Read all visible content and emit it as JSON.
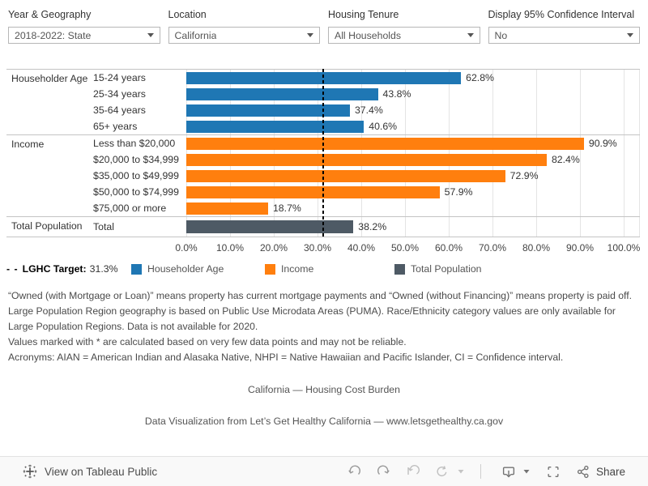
{
  "filters": [
    {
      "label": "Year & Geography",
      "value": "2018-2022: State"
    },
    {
      "label": "Location",
      "value": "California"
    },
    {
      "label": "Housing Tenure",
      "value": "All Households"
    },
    {
      "label": "Display 95% Confidence Interval",
      "value": "No"
    }
  ],
  "chart_data": {
    "type": "bar",
    "orientation": "horizontal",
    "title": "California — Housing Cost Burden",
    "x_axis": {
      "min": 0,
      "max": 100,
      "tick_step": 10,
      "grid": true,
      "tick_labels": [
        "0.0%",
        "10.0%",
        "20.0%",
        "30.0%",
        "40.0%",
        "50.0%",
        "60.0%",
        "70.0%",
        "80.0%",
        "90.0%",
        "100.0%"
      ]
    },
    "reference_line": {
      "prefix": "- -",
      "label": "LGHC Target:",
      "value": 31.3,
      "value_label": "31.3%",
      "style": "dashed",
      "color": "#000000"
    },
    "sections": [
      {
        "name": "Householder Age",
        "color": "#1f77b4",
        "rows": [
          {
            "label": "15-24 years",
            "value": 62.8,
            "value_label": "62.8%"
          },
          {
            "label": "25-34 years",
            "value": 43.8,
            "value_label": "43.8%"
          },
          {
            "label": "35-64 years",
            "value": 37.4,
            "value_label": "37.4%"
          },
          {
            "label": "65+ years",
            "value": 40.6,
            "value_label": "40.6%"
          }
        ]
      },
      {
        "name": "Income",
        "color": "#ff7f0e",
        "rows": [
          {
            "label": "Less than $20,000",
            "value": 90.9,
            "value_label": "90.9%"
          },
          {
            "label": "$20,000 to $34,999",
            "value": 82.4,
            "value_label": "82.4%"
          },
          {
            "label": "$35,000 to $49,999",
            "value": 72.9,
            "value_label": "72.9%"
          },
          {
            "label": "$50,000 to $74,999",
            "value": 57.9,
            "value_label": "57.9%"
          },
          {
            "label": "$75,000 or more",
            "value": 18.7,
            "value_label": "18.7%"
          }
        ]
      },
      {
        "name": "Total Population",
        "color": "#4e5a65",
        "rows": [
          {
            "label": "Total",
            "value": 38.2,
            "value_label": "38.2%"
          }
        ]
      }
    ],
    "legend": [
      {
        "label": "Householder Age",
        "color": "#1f77b4"
      },
      {
        "label": "Income",
        "color": "#ff7f0e"
      },
      {
        "label": "Total Population",
        "color": "#4e5a65"
      }
    ],
    "legend_position": "bottom"
  },
  "notes": [
    "“Owned (with Mortgage or Loan)” means property has current mortgage payments and “Owned (without Financing)” means property is paid off.",
    "Large Population Region geography is based on Public Use Microdata Areas (PUMA). Race/Ethnicity category values are only available for Large Population Regions. Data is not available for 2020.",
    "Values marked with * are calculated based on very few data points and may not be reliable.",
    "Acronyms: AIAN = American Indian and Alasaka Native, NHPI = Native Hawaiian and Pacific Islander, CI = Confidence interval."
  ],
  "footer": {
    "attribution": "Data Visualization from Let’s Get Healthy California — www.letsgethealthy.ca.gov"
  },
  "toolbar": {
    "view_label": "View on Tableau Public",
    "share_label": "Share"
  }
}
